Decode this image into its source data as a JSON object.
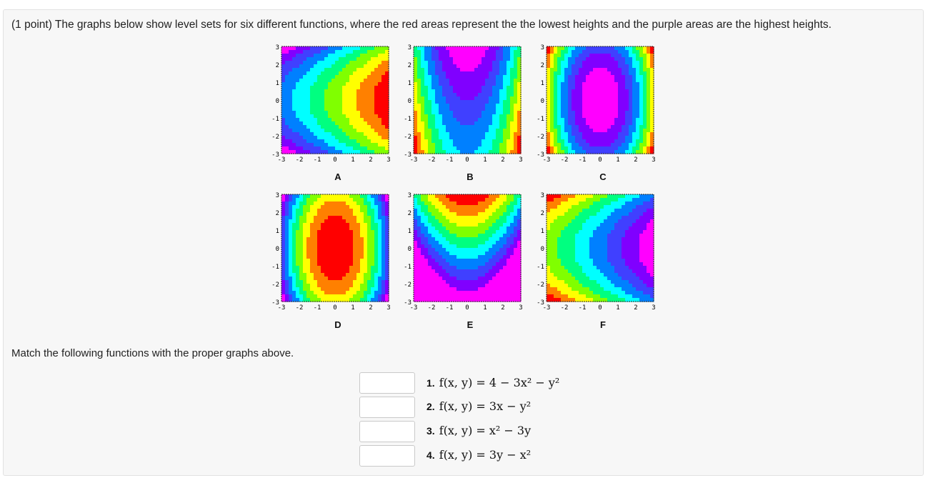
{
  "question": {
    "text": "(1 point) The graphs below show level sets for six different functions, where the red areas represent the the lowest heights and the purple areas are the highest heights."
  },
  "graphs": [
    {
      "label": "A",
      "kind": "parabola-right"
    },
    {
      "label": "B",
      "kind": "parabola-up-cold"
    },
    {
      "label": "C",
      "kind": "ellipse-hot"
    },
    {
      "label": "D",
      "kind": "ellipse-cold"
    },
    {
      "label": "E",
      "kind": "parabola-down-hot"
    },
    {
      "label": "F",
      "kind": "parabola-right-hot"
    }
  ],
  "axis_ticks": {
    "x": [
      "-3",
      "-2",
      "-1",
      "0",
      "1",
      "2",
      "3"
    ],
    "y": [
      "3",
      "2",
      "1",
      "0",
      "-1",
      "-2",
      "-3"
    ]
  },
  "match_prompt": "Match the following functions with the proper graphs above.",
  "items": [
    {
      "number": "1.",
      "equation": "f(x, y) = 4 − 3x² − y²",
      "answer": ""
    },
    {
      "number": "2.",
      "equation": "f(x, y) = 3x − y²",
      "answer": ""
    },
    {
      "number": "3.",
      "equation": "f(x, y) = x² − 3y",
      "answer": ""
    },
    {
      "number": "4.",
      "equation": "f(x, y) = 3y − x²",
      "answer": ""
    }
  ],
  "colors": {
    "rainbow": [
      "#ff0000",
      "#ff8000",
      "#ffff00",
      "#80ff00",
      "#00ff80",
      "#00ffff",
      "#0080ff",
      "#4040ff",
      "#8000ff",
      "#ff00ff"
    ]
  }
}
